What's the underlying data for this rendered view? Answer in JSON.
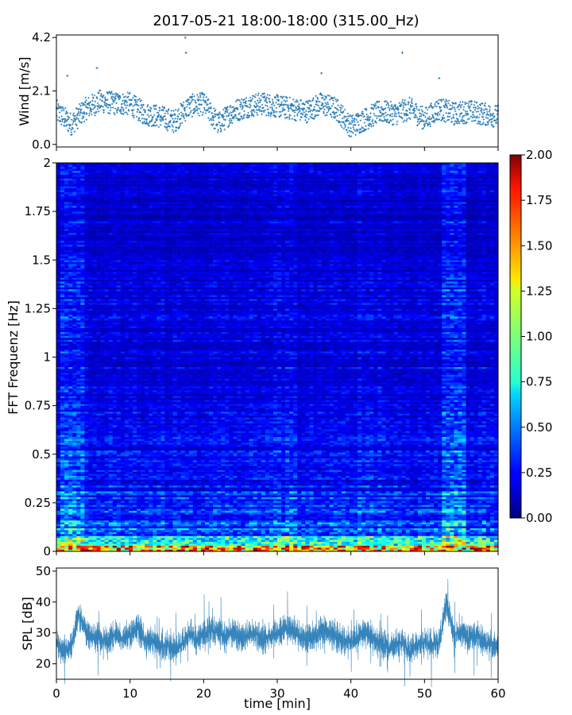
{
  "figure": {
    "title": "2017-05-21 18:00-18:00 (315.00_Hz)"
  },
  "colors": {
    "series": "#1f77b4",
    "axes": "#000000",
    "background": "#ffffff"
  },
  "chart_data": [
    {
      "id": "wind",
      "type": "scatter",
      "ylabel": "Wind [m/s]",
      "xlabel": "",
      "xlim": [
        0,
        60
      ],
      "ylim": [
        -0.1,
        4.3
      ],
      "yticks": [
        0.0,
        2.1,
        4.2
      ],
      "ytick_labels": [
        "0.0",
        "2.1",
        "4.2"
      ],
      "xticks": [
        0,
        10,
        20,
        30,
        40,
        50,
        60
      ],
      "x_tick_labels_shown": false,
      "grid": false,
      "marker": "small cross",
      "series": [
        {
          "x": [
            0,
            2,
            4,
            6,
            8,
            10,
            12,
            14,
            16,
            18,
            20,
            22,
            24,
            26,
            28,
            30,
            32,
            34,
            36,
            38,
            40,
            42,
            44,
            46,
            48,
            50,
            52,
            54,
            56,
            58,
            60
          ],
          "values": [
            1.3,
            0.8,
            1.4,
            1.7,
            1.6,
            1.6,
            1.2,
            1.1,
            0.9,
            1.5,
            1.6,
            0.8,
            1.3,
            1.5,
            1.6,
            1.5,
            1.4,
            1.3,
            1.6,
            1.4,
            0.7,
            1.0,
            1.3,
            1.2,
            1.4,
            1.0,
            1.4,
            1.2,
            1.3,
            1.2,
            1.1
          ],
          "notes_peaks": [
            [
              1.5,
              2.7
            ],
            [
              5.5,
              3.0
            ],
            [
              17.5,
              4.2
            ],
            [
              17.6,
              3.6
            ],
            [
              36,
              2.8
            ],
            [
              47,
              3.6
            ],
            [
              52,
              2.6
            ]
          ]
        }
      ]
    },
    {
      "id": "spectrogram",
      "type": "heatmap",
      "ylabel": "FFT Frequenz [Hz]",
      "xlabel": "",
      "xlim": [
        0,
        60
      ],
      "ylim": [
        0,
        2
      ],
      "yticks": [
        0,
        0.25,
        0.5,
        0.75,
        1,
        1.25,
        1.5,
        1.75,
        2
      ],
      "ytick_labels": [
        "0",
        "0.25",
        "0.5",
        "0.75",
        "1",
        "1.25",
        "1.5",
        "1.75",
        "2"
      ],
      "xticks": [
        0,
        10,
        20,
        30,
        40,
        50,
        60
      ],
      "x_tick_labels_shown": false,
      "colormap": "jet",
      "colorbar": {
        "range": [
          0,
          2
        ],
        "ticks": [
          0.0,
          0.25,
          0.5,
          0.75,
          1.0,
          1.25,
          1.5,
          1.75,
          2.0
        ],
        "tick_labels": [
          "0.00",
          "0.25",
          "0.50",
          "0.75",
          "1.00",
          "1.25",
          "1.50",
          "1.75",
          "2.00"
        ],
        "placement": "right"
      },
      "grid": false
    },
    {
      "id": "spl",
      "type": "line",
      "ylabel": "SPL [dB]",
      "xlabel": "time [min]",
      "xlim": [
        0,
        60
      ],
      "ylim": [
        15,
        51
      ],
      "yticks": [
        20,
        30,
        40,
        50
      ],
      "ytick_labels": [
        "20",
        "30",
        "40",
        "50"
      ],
      "xticks": [
        0,
        10,
        20,
        30,
        40,
        50,
        60
      ],
      "xtick_labels": [
        "0",
        "10",
        "20",
        "30",
        "40",
        "50",
        "60"
      ],
      "grid": false,
      "series": [
        {
          "x": [
            0,
            1,
            2,
            3,
            4,
            5,
            6,
            7,
            8,
            9,
            10,
            11,
            12,
            13,
            14,
            15,
            16,
            17,
            18,
            19,
            20,
            21,
            22,
            23,
            24,
            25,
            26,
            27,
            28,
            29,
            30,
            31,
            32,
            33,
            34,
            35,
            36,
            37,
            38,
            39,
            40,
            41,
            42,
            43,
            44,
            45,
            46,
            47,
            48,
            49,
            50,
            51,
            52,
            53,
            54,
            55,
            56,
            57,
            58,
            59,
            60
          ],
          "values": [
            27,
            24,
            25,
            36,
            30,
            29,
            28,
            27,
            30,
            28,
            29,
            32,
            28,
            27,
            26,
            26,
            25,
            26,
            30,
            28,
            29,
            31,
            30,
            29,
            30,
            28,
            29,
            30,
            28,
            29,
            30,
            32,
            31,
            29,
            28,
            29,
            30,
            31,
            29,
            27,
            27,
            29,
            30,
            28,
            27,
            25,
            26,
            27,
            24,
            26,
            27,
            26,
            27,
            40,
            29,
            31,
            28,
            29,
            27,
            26,
            25
          ]
        }
      ]
    }
  ]
}
